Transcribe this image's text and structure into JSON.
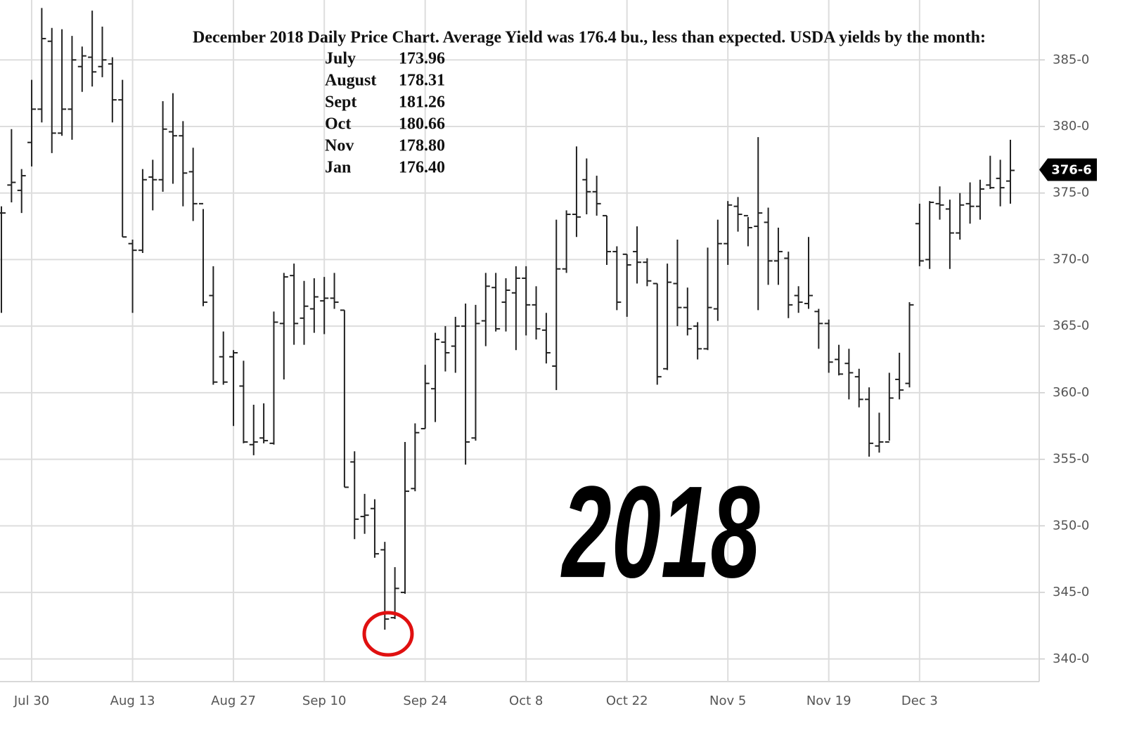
{
  "chart_data": {
    "type": "ohlc",
    "title": "December 2018 Daily Price Chart.  Average Yield was 176.4 bu., less than expected. USDA yields by the month:",
    "yield_table": [
      [
        "July",
        "173.96"
      ],
      [
        "August",
        "178.31"
      ],
      [
        "Sept",
        "181.26"
      ],
      [
        "Oct",
        "180.66"
      ],
      [
        "Nov",
        "178.80"
      ],
      [
        "Jan",
        "176.40"
      ]
    ],
    "year_label": "2018",
    "last_price": {
      "value": 376.75,
      "label": "376-6"
    },
    "color": "#222222",
    "grid": true,
    "ylim": [
      338.3,
      389.5
    ],
    "yticks": [
      {
        "value": 340,
        "label": "340-0"
      },
      {
        "value": 345,
        "label": "345-0"
      },
      {
        "value": 350,
        "label": "350-0"
      },
      {
        "value": 355,
        "label": "355-0"
      },
      {
        "value": 360,
        "label": "360-0"
      },
      {
        "value": 365,
        "label": "365-0"
      },
      {
        "value": 370,
        "label": "370-0"
      },
      {
        "value": 375,
        "label": "375-0"
      },
      {
        "value": 380,
        "label": "380-0"
      },
      {
        "value": 385,
        "label": "385-0"
      }
    ],
    "categories": [
      null,
      null,
      null,
      "Jul 30",
      null,
      null,
      null,
      null,
      null,
      null,
      null,
      null,
      null,
      "Aug 13",
      null,
      null,
      null,
      null,
      null,
      null,
      null,
      null,
      null,
      "Aug 27",
      null,
      null,
      null,
      null,
      null,
      null,
      null,
      null,
      "Sep 10",
      null,
      null,
      null,
      null,
      null,
      null,
      null,
      null,
      null,
      "Sep 24",
      null,
      null,
      null,
      null,
      null,
      null,
      null,
      null,
      null,
      "Oct 8",
      null,
      null,
      null,
      null,
      null,
      null,
      null,
      null,
      null,
      "Oct 22",
      null,
      null,
      null,
      null,
      null,
      null,
      null,
      null,
      null,
      "Nov 5",
      null,
      null,
      null,
      null,
      null,
      null,
      null,
      null,
      null,
      "Nov 19",
      null,
      null,
      null,
      null,
      null,
      null,
      null,
      null,
      "Dec 3",
      null,
      null,
      null,
      null,
      null,
      null,
      null,
      null,
      null
    ],
    "open": [
      373.5,
      375.6,
      375.2,
      378.8,
      381.3,
      386.4,
      379.5,
      381.3,
      384.5,
      385.2,
      384.5,
      384.7,
      382,
      371.2,
      370.7,
      376.2,
      376,
      379.6,
      379.3,
      376.6,
      374.2,
      367.3,
      362.7,
      362.7,
      360.5,
      356.1,
      356.6,
      356.2,
      365.2,
      368.8,
      365.6,
      366.3,
      366.9,
      367.1,
      366.2,
      354.8,
      350.7,
      351.3,
      348.2,
      343.1,
      345,
      352.8,
      357.3,
      360.3,
      363.8,
      363.5,
      365,
      356.6,
      365.4,
      367.9,
      366.8,
      367.5,
      368.6,
      366.6,
      364.7,
      362,
      369.3,
      373.4,
      376,
      375.1,
      373.3,
      370.6,
      370.4,
      370.6,
      369.8,
      368.2,
      361.8,
      368.2,
      366.4,
      365,
      363.3,
      366.3,
      371.2,
      374,
      373.3,
      372.5,
      372.8,
      369.9,
      370.1,
      367.3,
      366.7,
      366.1,
      365.2,
      362.5,
      362.2,
      361.2,
      359.5,
      356,
      356.3,
      361,
      360.7,
      372.7,
      370,
      374.2,
      373.8,
      372,
      374.2,
      374,
      375.6,
      376.1,
      375.9
    ],
    "high": [
      374,
      379.8,
      376.8,
      383.5,
      388.9,
      387.4,
      387.3,
      386.8,
      386,
      388.7,
      387.5,
      385.2,
      383.5,
      371.5,
      376.8,
      377.5,
      381.9,
      382.5,
      380.4,
      378.4,
      373.8,
      369.5,
      364.6,
      363.2,
      362.4,
      359.1,
      359.2,
      366.1,
      369,
      369.7,
      368.4,
      368.6,
      368.7,
      369,
      366.2,
      355.6,
      352.4,
      352,
      348.8,
      346.9,
      356.3,
      357.7,
      362.1,
      364.5,
      365,
      365.7,
      366.7,
      366.6,
      369,
      369,
      368.6,
      369.5,
      369.5,
      368,
      366,
      373,
      373.7,
      378.5,
      377.6,
      376.3,
      373.3,
      371,
      370.4,
      372.5,
      370.1,
      368.2,
      369.7,
      371.5,
      367.9,
      365.3,
      370.9,
      373,
      374.4,
      374.7,
      373.2,
      379.2,
      373.9,
      372.4,
      370.6,
      368,
      371.7,
      366.3,
      365.5,
      363.6,
      363.3,
      361.8,
      360.4,
      358.5,
      361.5,
      363,
      366.8,
      374.2,
      374.4,
      375.5,
      374.5,
      375,
      375.8,
      376,
      377.8,
      377.5,
      379
    ],
    "low": [
      366,
      374.3,
      373.5,
      377,
      380.3,
      378,
      379.3,
      379,
      382.6,
      383,
      383.7,
      380.3,
      371.7,
      366,
      370.5,
      373.7,
      375.1,
      375.7,
      374,
      372.9,
      366.5,
      360.6,
      360.6,
      357.5,
      356.2,
      355.3,
      356.2,
      356.1,
      361,
      363.6,
      363.6,
      364.5,
      364.4,
      366.3,
      352.9,
      349,
      349.4,
      347.6,
      342.2,
      343,
      344.9,
      352.6,
      357.3,
      357.8,
      361.6,
      361.5,
      354.6,
      356.4,
      363.5,
      364.6,
      364.6,
      363.2,
      364.3,
      364,
      362.2,
      360.2,
      369,
      371.7,
      373.4,
      373.3,
      369.6,
      366.2,
      365.7,
      368.2,
      368,
      360.6,
      361.7,
      365,
      364.3,
      362.5,
      363.2,
      365.4,
      369.6,
      372.1,
      371,
      366.2,
      368.1,
      368.1,
      365.6,
      366,
      366.3,
      363.3,
      361.5,
      361.3,
      359.5,
      358.9,
      355.2,
      355.5,
      356.4,
      359.5,
      360.4,
      369.5,
      369.3,
      373,
      369.3,
      371.5,
      372.7,
      373,
      375.3,
      374,
      374.2
    ],
    "close": [
      373.5,
      375.8,
      376.3,
      381.3,
      386.6,
      379.5,
      381.3,
      385,
      385.3,
      384.1,
      385,
      382,
      371.7,
      370.7,
      376,
      376,
      379.8,
      379.3,
      376.5,
      374.2,
      366.8,
      360.8,
      360.8,
      363,
      356.3,
      356.3,
      356.4,
      365.3,
      368.7,
      365.2,
      366.5,
      367.2,
      367.1,
      366.8,
      352.9,
      350.5,
      350.8,
      347.9,
      343,
      345.3,
      352.6,
      357,
      360.7,
      364,
      363,
      365,
      356.3,
      365.2,
      368,
      364.8,
      367.7,
      368.6,
      366.6,
      364.8,
      363,
      369.3,
      373.4,
      373.2,
      375.1,
      374.2,
      370.6,
      366.8,
      369.6,
      369.8,
      368.4,
      361.2,
      368.3,
      366.4,
      364.8,
      363.3,
      366.4,
      371.2,
      374.1,
      373.4,
      372.4,
      373.5,
      369.9,
      370.6,
      366.6,
      366.8,
      367.3,
      365.2,
      362.3,
      361.4,
      361.5,
      359.5,
      356.2,
      356.3,
      359.6,
      360.2,
      366.6,
      369.9,
      374.3,
      374.1,
      372,
      374.1,
      374,
      375.3,
      375.4,
      375.4,
      376.7
    ]
  }
}
